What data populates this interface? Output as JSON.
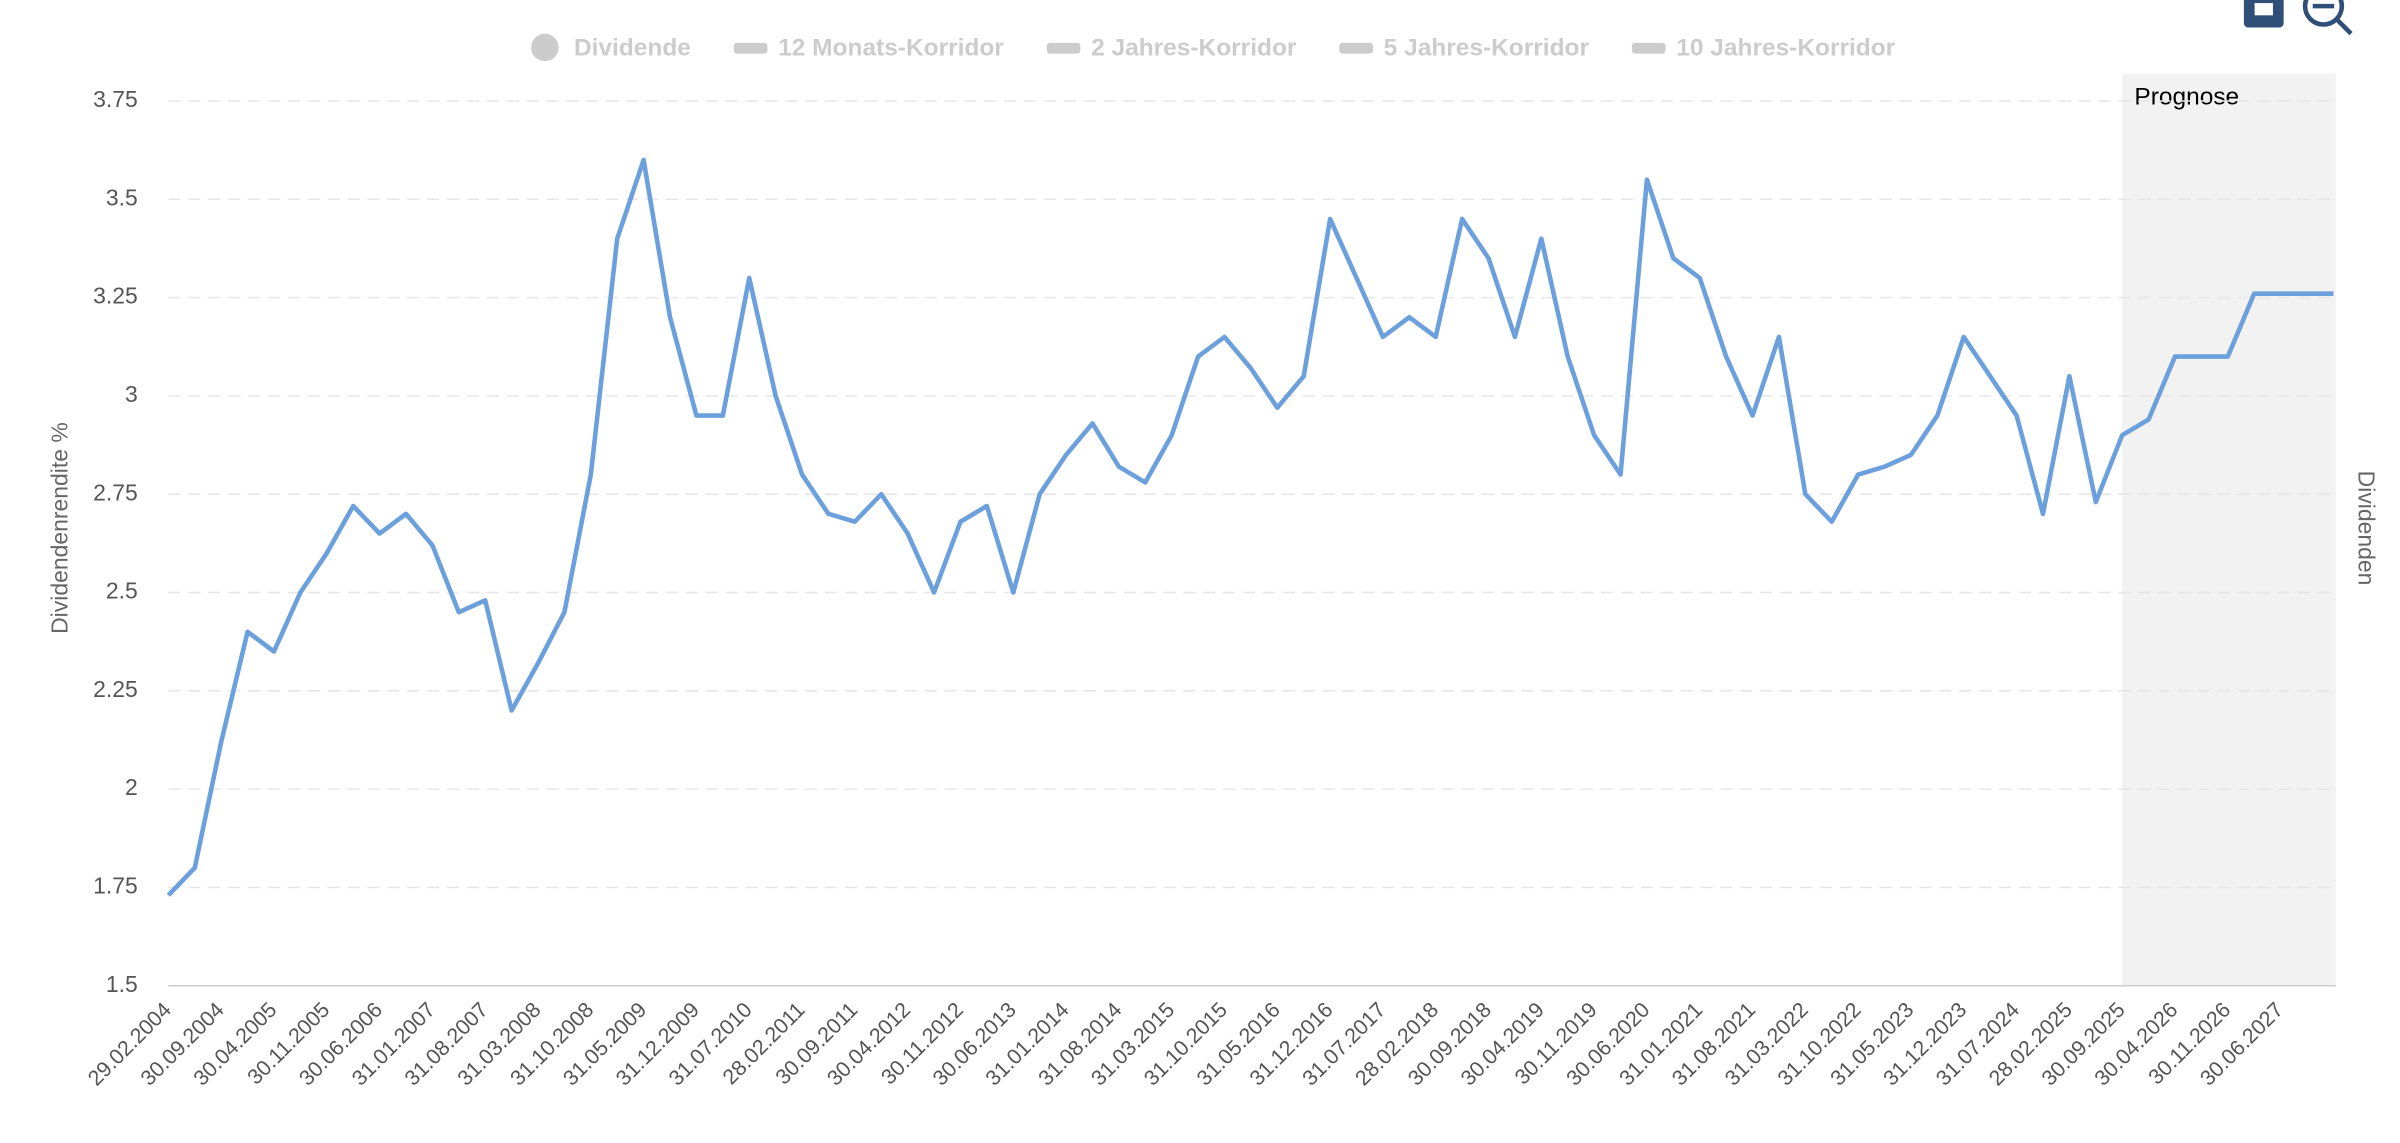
{
  "chart_data": {
    "type": "line",
    "legend_items": [
      "Dividende",
      "12 Monats-Korridor",
      "2 Jahres-Korridor",
      "5 Jahres-Korridor",
      "10 Jahres-Korridor"
    ],
    "y_label": "Dividendenrendite %",
    "y2_label": "Dividenden",
    "forecast_label": "Prognose",
    "forecast_start": "30.09.2025",
    "categories": [
      "29.02.2004",
      null,
      "30.09.2004",
      null,
      "30.04.2005",
      null,
      "30.11.2005",
      null,
      "30.06.2006",
      null,
      "31.01.2007",
      null,
      "31.08.2007",
      null,
      "31.03.2008",
      null,
      "31.10.2008",
      null,
      "31.05.2009",
      null,
      "31.12.2009",
      null,
      "31.07.2010",
      null,
      "28.02.2011",
      null,
      "30.09.2011",
      null,
      "30.04.2012",
      null,
      "30.11.2012",
      null,
      "30.06.2013",
      null,
      "31.01.2014",
      null,
      "31.08.2014",
      null,
      "31.03.2015",
      null,
      "31.10.2015",
      null,
      "31.05.2016",
      null,
      "31.12.2016",
      null,
      "31.07.2017",
      null,
      "28.02.2018",
      null,
      "30.09.2018",
      null,
      "30.04.2019",
      null,
      "30.11.2019",
      null,
      "30.06.2020",
      null,
      "31.01.2021",
      null,
      "31.08.2021",
      null,
      "31.03.2022",
      null,
      "31.10.2022",
      null,
      "31.05.2023",
      null,
      "31.12.2023",
      null,
      "31.07.2024",
      null,
      "28.02.2025",
      null,
      "30.09.2025",
      null,
      "30.04.2026",
      null,
      "30.11.2026",
      null,
      "30.06.2027",
      null,
      null
    ],
    "series": [
      {
        "name": "Dividendenrendite",
        "color": "#6ca0dc",
        "values": [
          1.73,
          1.8,
          2.12,
          2.4,
          2.35,
          2.5,
          2.6,
          2.72,
          2.65,
          2.7,
          2.62,
          2.45,
          2.48,
          2.2,
          2.32,
          2.45,
          2.8,
          3.4,
          3.6,
          3.2,
          2.95,
          2.95,
          3.3,
          3.0,
          2.8,
          2.7,
          2.68,
          2.75,
          2.65,
          2.5,
          2.68,
          2.72,
          2.5,
          2.75,
          2.85,
          2.93,
          2.82,
          2.78,
          2.9,
          3.1,
          3.15,
          3.07,
          2.97,
          3.05,
          3.45,
          3.3,
          3.15,
          3.2,
          3.15,
          3.45,
          3.35,
          3.15,
          3.4,
          3.1,
          2.9,
          2.8,
          3.55,
          3.35,
          3.3,
          3.1,
          2.95,
          3.15,
          2.75,
          2.68,
          2.8,
          2.82,
          2.85,
          2.95,
          3.15,
          3.05,
          2.95,
          2.7,
          3.05,
          2.73,
          2.9,
          2.94,
          3.1,
          3.1,
          3.1,
          3.26,
          3.26,
          3.26,
          3.26
        ]
      }
    ],
    "ylim": [
      1.5,
      3.82
    ],
    "yticks": [
      1.5,
      1.75,
      2,
      2.25,
      2.5,
      2.75,
      3,
      3.25,
      3.5,
      3.75
    ],
    "grid": true
  }
}
